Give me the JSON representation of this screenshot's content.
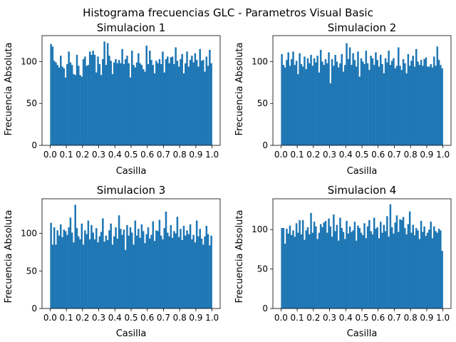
{
  "figure": {
    "suptitle": "Histograma frecuencias GLC - Parametros Visual Basic"
  },
  "colors": {
    "bar": "#1f77b4",
    "axis": "#000000",
    "background": "#ffffff"
  },
  "chart_data": [
    {
      "type": "bar",
      "title": "Simulacion 1",
      "xlabel": "Casilla",
      "ylabel": "Frecuencia Absoluta",
      "bins": 100,
      "bin_range": [
        0,
        1
      ],
      "xlim": [
        -0.05,
        1.05
      ],
      "ylim": [
        0,
        131
      ],
      "xticks": [
        "0.0",
        "0.1",
        "0.2",
        "0.3",
        "0.4",
        "0.5",
        "0.6",
        "0.7",
        "0.8",
        "0.9",
        "1.0"
      ],
      "yticks": [
        0,
        50,
        100
      ],
      "grid": false,
      "values": [
        121,
        118,
        101,
        99,
        96,
        93,
        107,
        94,
        92,
        81,
        97,
        112,
        99,
        96,
        85,
        84,
        108,
        95,
        84,
        82,
        103,
        106,
        95,
        96,
        112,
        108,
        113,
        108,
        87,
        106,
        97,
        84,
        103,
        124,
        96,
        122,
        107,
        101,
        85,
        99,
        103,
        98,
        102,
        98,
        115,
        97,
        103,
        107,
        98,
        81,
        113,
        96,
        93,
        99,
        110,
        98,
        96,
        91,
        88,
        119,
        97,
        113,
        102,
        96,
        86,
        101,
        98,
        103,
        97,
        112,
        87,
        103,
        106,
        98,
        105,
        106,
        97,
        117,
        101,
        94,
        103,
        109,
        86,
        98,
        112,
        94,
        102,
        107,
        99,
        110,
        102,
        94,
        115,
        101,
        102,
        88,
        106,
        95,
        114,
        98
      ]
    },
    {
      "type": "bar",
      "title": "Simulacion 2",
      "xlabel": "Casilla",
      "ylabel": "Frecuencia Absoluta",
      "bins": 100,
      "bin_range": [
        0,
        1
      ],
      "xlim": [
        -0.05,
        1.05
      ],
      "ylim": [
        0,
        131
      ],
      "xticks": [
        "0.0",
        "0.1",
        "0.2",
        "0.3",
        "0.4",
        "0.5",
        "0.6",
        "0.7",
        "0.8",
        "0.9",
        "1.0"
      ],
      "yticks": [
        0,
        50,
        100
      ],
      "grid": false,
      "values": [
        109,
        96,
        93,
        102,
        111,
        95,
        103,
        112,
        96,
        101,
        85,
        110,
        97,
        94,
        106,
        91,
        104,
        98,
        108,
        95,
        104,
        99,
        107,
        87,
        114,
        100,
        96,
        103,
        98,
        111,
        74,
        103,
        95,
        108,
        100,
        93,
        98,
        109,
        88,
        96,
        122,
        103,
        117,
        96,
        110,
        102,
        94,
        112,
        82,
        104,
        100,
        97,
        113,
        98,
        90,
        107,
        104,
        96,
        111,
        102,
        94,
        108,
        97,
        86,
        104,
        99,
        113,
        96,
        101,
        104,
        92,
        95,
        117,
        95,
        90,
        103,
        98,
        86,
        109,
        95,
        101,
        107,
        94,
        115,
        100,
        96,
        102,
        95,
        103,
        105,
        94,
        94,
        97,
        93,
        106,
        95,
        118,
        102,
        96,
        92
      ]
    },
    {
      "type": "bar",
      "title": "Simulacion 3",
      "xlabel": "Casilla",
      "ylabel": "Frecuencia Absoluta",
      "bins": 100,
      "bin_range": [
        0,
        1
      ],
      "xlim": [
        -0.05,
        1.05
      ],
      "ylim": [
        0,
        146
      ],
      "xticks": [
        "0.0",
        "0.1",
        "0.2",
        "0.3",
        "0.4",
        "0.5",
        "0.6",
        "0.7",
        "0.8",
        "0.9",
        "1.0"
      ],
      "yticks": [
        0,
        50,
        100
      ],
      "grid": false,
      "values": [
        114,
        85,
        108,
        85,
        104,
        97,
        112,
        95,
        105,
        103,
        98,
        108,
        121,
        101,
        88,
        138,
        107,
        96,
        92,
        113,
        85,
        104,
        99,
        117,
        92,
        111,
        101,
        92,
        107,
        88,
        96,
        102,
        120,
        89,
        97,
        91,
        104,
        113,
        85,
        96,
        108,
        93,
        124,
        106,
        98,
        105,
        78,
        111,
        97,
        108,
        101,
        85,
        117,
        97,
        106,
        94,
        112,
        103,
        87,
        99,
        108,
        93,
        98,
        116,
        90,
        104,
        103,
        118,
        97,
        92,
        107,
        129,
        101,
        96,
        111,
        94,
        103,
        100,
        122,
        95,
        106,
        91,
        110,
        97,
        104,
        99,
        112,
        92,
        98,
        88,
        117,
        96,
        106,
        93,
        85,
        96,
        110,
        99,
        84,
        97
      ]
    },
    {
      "type": "bar",
      "title": "Simulacion 4",
      "xlabel": "Casilla",
      "ylabel": "Frecuencia Absoluta",
      "bins": 100,
      "bin_range": [
        0,
        1
      ],
      "xlim": [
        -0.05,
        1.05
      ],
      "ylim": [
        0,
        139
      ],
      "xticks": [
        "0.0",
        "0.1",
        "0.2",
        "0.3",
        "0.4",
        "0.5",
        "0.6",
        "0.7",
        "0.8",
        "0.9",
        "1.0"
      ],
      "yticks": [
        0,
        50,
        100
      ],
      "grid": false,
      "values": [
        102,
        102,
        82,
        101,
        95,
        105,
        93,
        99,
        91,
        108,
        96,
        112,
        94,
        112,
        87,
        99,
        103,
        94,
        121,
        96,
        110,
        104,
        88,
        96,
        107,
        103,
        109,
        111,
        96,
        114,
        104,
        91,
        119,
        98,
        106,
        86,
        115,
        102,
        97,
        88,
        111,
        95,
        104,
        97,
        99,
        110,
        86,
        105,
        102,
        96,
        93,
        108,
        89,
        104,
        112,
        98,
        94,
        115,
        101,
        103,
        89,
        110,
        96,
        106,
        98,
        117,
        91,
        132,
        103,
        95,
        109,
        118,
        97,
        113,
        112,
        116,
        102,
        94,
        107,
        123,
        96,
        106,
        93,
        102,
        99,
        88,
        111,
        97,
        104,
        92,
        96,
        100,
        110,
        89,
        104,
        98,
        96,
        101,
        99,
        73
      ]
    }
  ]
}
